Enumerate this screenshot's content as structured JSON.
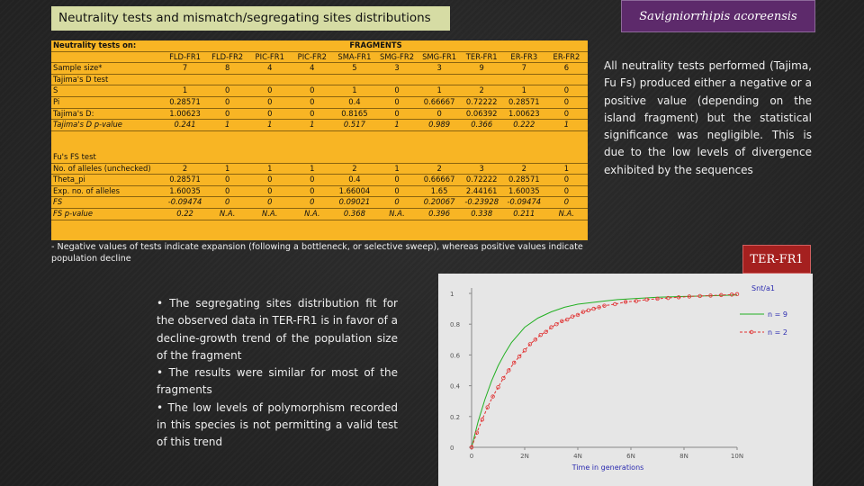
{
  "title": "Neutrality tests and mismatch/segregating sites distributions",
  "species": "Savigniorrhipis acoreensis",
  "table": {
    "header_label": "Neutrality tests on:",
    "group_label": "FRAGMENTS",
    "columns": [
      "FLD-FR1",
      "FLD-FR2",
      "PIC-FR1",
      "PIC-FR2",
      "SMA-FR1",
      "SMG-FR2",
      "SMG-FR1",
      "TER-FR1",
      "ER-FR3",
      "ER-FR2"
    ],
    "sample_size_label": "Sample size*",
    "sample_size": [
      "7",
      "8",
      "4",
      "4",
      "5",
      "3",
      "3",
      "9",
      "7",
      "6"
    ],
    "tajima_label": "Tajima's D test",
    "tajima_rows": [
      {
        "label": "S",
        "values": [
          "1",
          "0",
          "0",
          "0",
          "1",
          "0",
          "1",
          "2",
          "1",
          "0"
        ]
      },
      {
        "label": "Pi",
        "values": [
          "0.28571",
          "0",
          "0",
          "0",
          "0.4",
          "0",
          "0.66667",
          "0.72222",
          "0.28571",
          "0"
        ]
      },
      {
        "label": "Tajima's D:",
        "values": [
          "1.00623",
          "0",
          "0",
          "0",
          "0.8165",
          "0",
          "0",
          "0.06392",
          "1.00623",
          "0"
        ]
      },
      {
        "label": "Tajima's D p-value",
        "values": [
          "0.241",
          "1",
          "1",
          "1",
          "0.517",
          "1",
          "0.989",
          "0.366",
          "0.222",
          "1"
        ]
      }
    ],
    "fu_label": "Fu's FS test",
    "fu_rows": [
      {
        "label": "No. of alleles (unchecked)",
        "values": [
          "2",
          "1",
          "1",
          "1",
          "2",
          "1",
          "2",
          "3",
          "2",
          "1"
        ]
      },
      {
        "label": "Theta_pi",
        "values": [
          "0.28571",
          "0",
          "0",
          "0",
          "0.4",
          "0",
          "0.66667",
          "0.72222",
          "0.28571",
          "0"
        ]
      },
      {
        "label": "Exp. no. of alleles",
        "values": [
          "1.60035",
          "0",
          "0",
          "0",
          "1.66004",
          "0",
          "1.65",
          "2.44161",
          "1.60035",
          "0"
        ]
      },
      {
        "label": "FS",
        "values": [
          "-0.09474",
          "0",
          "0",
          "0",
          "0.09021",
          "0",
          "0.20067",
          "-0.23928",
          "-0.09474",
          "0"
        ]
      },
      {
        "label": "FS p-value",
        "values": [
          "0.22",
          "N.A.",
          "N.A.",
          "N.A.",
          "0.368",
          "N.A.",
          "0.396",
          "0.338",
          "0.211",
          "N.A."
        ]
      }
    ]
  },
  "footnote": "- Negative values of tests indicate expansion (following a bottleneck, or selective sweep), whereas positive values indicate population decline",
  "right_text": "All neutrality tests performed (Tajima, Fu Fs) produced either a negative or a positive value (depending on the island fragment) but the statistical significance was negligible. This is due to the low levels of divergence exhibited by the sequences",
  "chart_label": "TER-FR1",
  "bullets": [
    "• The segregating sites distribution fit for the observed data in TER-FR1 is in favor of a decline-growth trend of the population size of the fragment",
    "• The results were similar for most of the fragments",
    "• The low levels of polymorphism recorded in this species is not permitting a valid test of this trend"
  ],
  "chart_data": {
    "type": "line",
    "title": "Snt/a1",
    "xlabel": "Time in generations",
    "ylabel": "",
    "x_ticks": [
      "0",
      "2N",
      "4N",
      "6N",
      "8N",
      "10N"
    ],
    "y_ticks": [
      "0",
      "0.2",
      "0.4",
      "0.6",
      "0.8",
      "1"
    ],
    "xlim": [
      0,
      10
    ],
    "ylim": [
      0,
      1
    ],
    "legend_position": "top-right",
    "series": [
      {
        "name": "n = 9",
        "color": "#22b022",
        "style": "solid",
        "x": [
          0,
          0.25,
          0.5,
          0.75,
          1,
          1.25,
          1.5,
          1.75,
          2,
          2.5,
          3,
          3.5,
          4,
          4.5,
          5,
          5.5,
          6,
          7,
          8,
          9,
          10
        ],
        "y": [
          0,
          0.17,
          0.31,
          0.43,
          0.53,
          0.61,
          0.68,
          0.73,
          0.78,
          0.84,
          0.88,
          0.91,
          0.93,
          0.94,
          0.95,
          0.96,
          0.965,
          0.975,
          0.98,
          0.985,
          0.99
        ]
      },
      {
        "name": "n = 2",
        "color": "#e03030",
        "style": "dashed",
        "x": [
          0,
          0.2,
          0.4,
          0.6,
          0.8,
          1,
          1.2,
          1.4,
          1.6,
          1.8,
          2,
          2.2,
          2.4,
          2.6,
          2.8,
          3,
          3.2,
          3.4,
          3.6,
          3.8,
          4,
          4.2,
          4.4,
          4.6,
          4.8,
          5,
          5.4,
          5.8,
          6.2,
          6.6,
          7,
          7.4,
          7.8,
          8.2,
          8.6,
          9,
          9.4,
          9.8,
          10
        ],
        "y": [
          0,
          0.095,
          0.18,
          0.26,
          0.33,
          0.39,
          0.45,
          0.5,
          0.55,
          0.59,
          0.63,
          0.67,
          0.7,
          0.73,
          0.75,
          0.78,
          0.8,
          0.82,
          0.83,
          0.85,
          0.86,
          0.88,
          0.89,
          0.9,
          0.91,
          0.92,
          0.93,
          0.945,
          0.95,
          0.96,
          0.965,
          0.97,
          0.975,
          0.98,
          0.983,
          0.986,
          0.989,
          0.992,
          0.995
        ]
      }
    ]
  }
}
